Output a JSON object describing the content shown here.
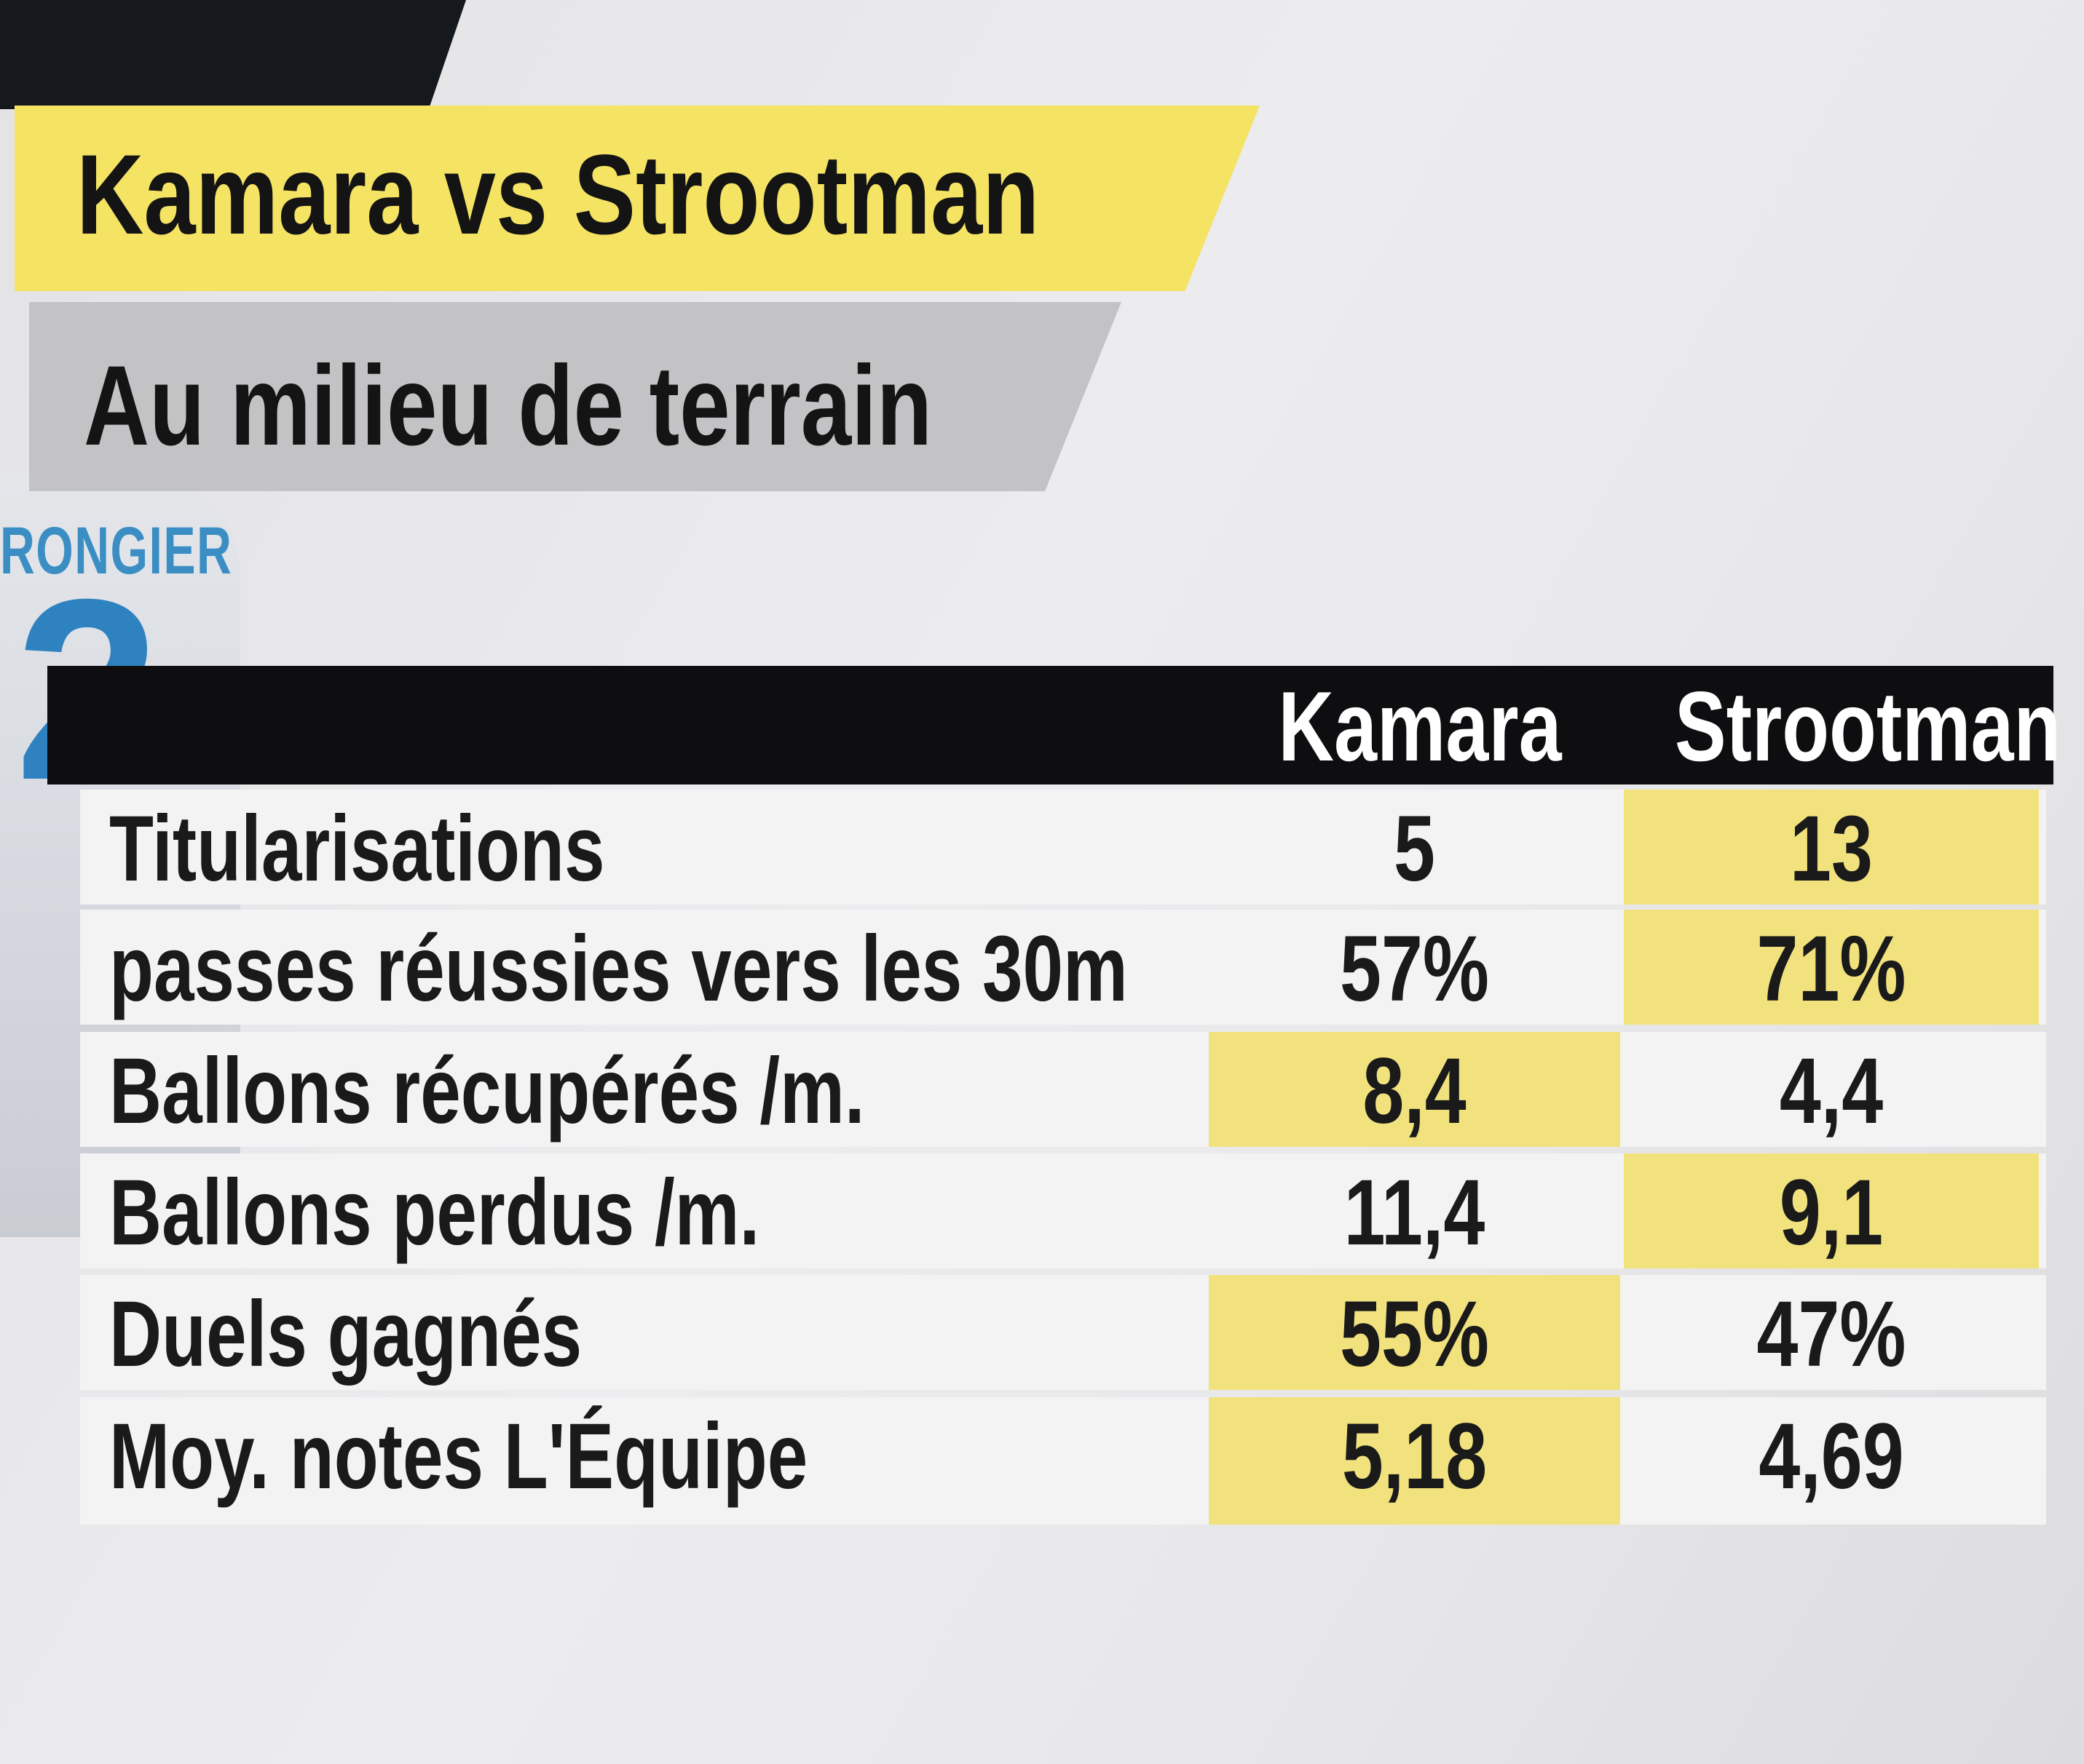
{
  "graphic": {
    "title": "Kamara vs Strootman",
    "subtitle": "Au milieu de terrain"
  },
  "background": {
    "player_shirt_name": "RONGIER"
  },
  "table": {
    "columns": [
      "Kamara",
      "Strootman"
    ],
    "rows": [
      {
        "label": "Titularisations",
        "kamara": "5",
        "strootman": "13",
        "highlight": "strootman"
      },
      {
        "label": "passes réussies vers les 30m",
        "kamara": "57%",
        "strootman": "71%",
        "highlight": "strootman"
      },
      {
        "label": "Ballons récupérés /m.",
        "kamara": "8,4",
        "strootman": "4,4",
        "highlight": "kamara"
      },
      {
        "label": "Ballons perdus /m.",
        "kamara": "11,4",
        "strootman": "9,1",
        "highlight": "strootman"
      },
      {
        "label": "Duels gagnés",
        "kamara": "55%",
        "strootman": "47%",
        "highlight": "kamara"
      },
      {
        "label": "Moy. notes L'Équipe",
        "kamara": "5,18",
        "strootman": "4,69",
        "highlight": "kamara"
      }
    ]
  },
  "colors": {
    "highlight": "#f1e27e",
    "title_band": "#f5e363",
    "subtitle_band": "#c3c3c5",
    "header_bar": "#0e0e10"
  }
}
